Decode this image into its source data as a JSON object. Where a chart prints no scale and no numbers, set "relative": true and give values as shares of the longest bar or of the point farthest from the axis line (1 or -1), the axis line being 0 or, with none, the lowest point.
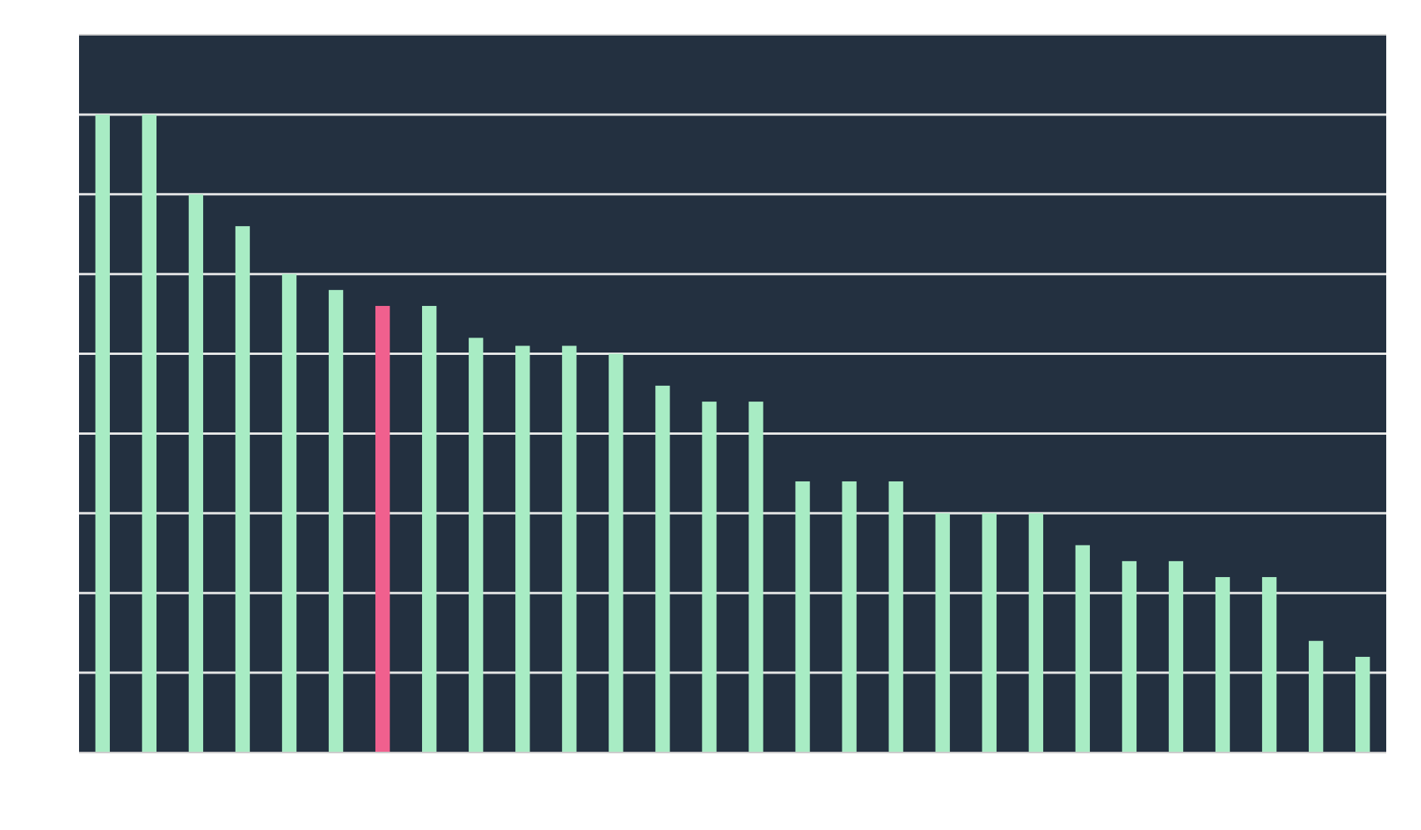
{
  "chart_data": {
    "type": "bar",
    "relative": true,
    "grid": true,
    "categories": [
      null,
      null,
      null,
      null,
      null,
      null,
      null,
      null,
      null,
      null,
      null,
      null,
      null,
      null,
      null,
      null,
      null,
      null,
      null,
      null,
      null,
      null,
      null,
      null,
      null,
      null,
      null,
      null
    ],
    "values": [
      1,
      1,
      0.875,
      0.825,
      0.75,
      0.725,
      0.7,
      0.7,
      0.65,
      0.6375,
      0.6375,
      0.625,
      0.575,
      0.55,
      0.55,
      0.425,
      0.425,
      0.425,
      0.375,
      0.375,
      0.375,
      0.325,
      0.3,
      0.3,
      0.275,
      0.275,
      0.175,
      0.15
    ],
    "colors": [
      "#a8ecc4",
      "#a8ecc4",
      "#a8ecc4",
      "#a8ecc4",
      "#a8ecc4",
      "#a8ecc4",
      "#f0608e",
      "#a8ecc4",
      "#a8ecc4",
      "#a8ecc4",
      "#a8ecc4",
      "#a8ecc4",
      "#a8ecc4",
      "#a8ecc4",
      "#a8ecc4",
      "#a8ecc4",
      "#a8ecc4",
      "#a8ecc4",
      "#a8ecc4",
      "#a8ecc4",
      "#a8ecc4",
      "#a8ecc4",
      "#a8ecc4",
      "#a8ecc4",
      "#a8ecc4",
      "#a8ecc4",
      "#a8ecc4",
      "#a8ecc4"
    ]
  }
}
